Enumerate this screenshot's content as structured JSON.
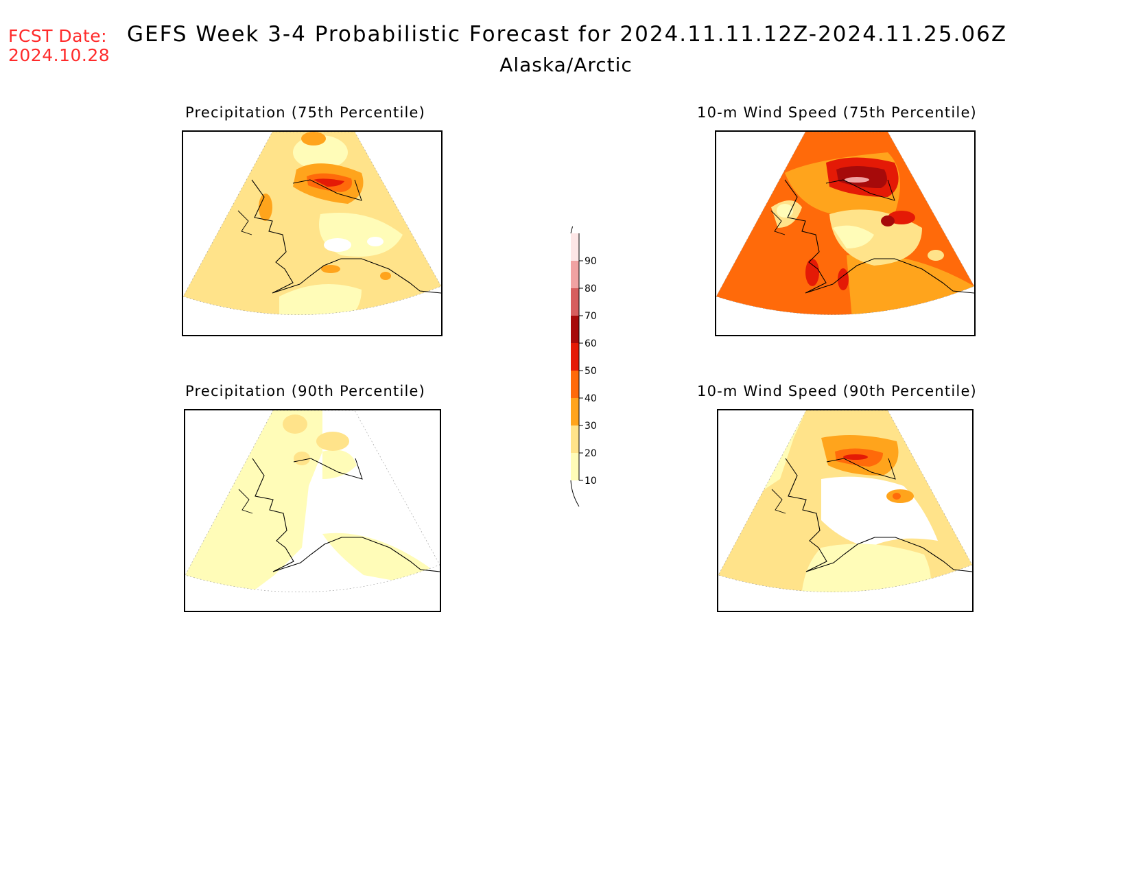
{
  "header": {
    "fcst_label": "FCST Date:",
    "fcst_date": "2024.10.28",
    "title": "GEFS Week 3-4 Probabilistic Forecast for 2024.11.11.12Z-2024.11.25.06Z",
    "region": "Alaska/Arctic"
  },
  "panels": [
    {
      "title": "Precipitation (75th Percentile)"
    },
    {
      "title": "10-m Wind Speed (75th Percentile)"
    },
    {
      "title": "Precipitation (90th Percentile)"
    },
    {
      "title": "10-m Wind Speed (90th Percentile)"
    }
  ],
  "colorbar": {
    "levels": [
      "10",
      "20",
      "30",
      "40",
      "50",
      "60",
      "70",
      "80",
      "90"
    ],
    "colors": [
      "#fffcb8",
      "#ffe38a",
      "#ffa41c",
      "#ff6a0a",
      "#e41a06",
      "#a60a0a",
      "#d65e5e",
      "#f0a2a2",
      "#fde6e6"
    ]
  },
  "colors": {
    "fcst_text": "#ff2a2a",
    "shade_10": "#fffcb8",
    "shade_20": "#ffe38a",
    "shade_30": "#ffa41c",
    "shade_40": "#ff6a0a",
    "shade_50": "#e41a06",
    "shade_60": "#a60a0a"
  }
}
